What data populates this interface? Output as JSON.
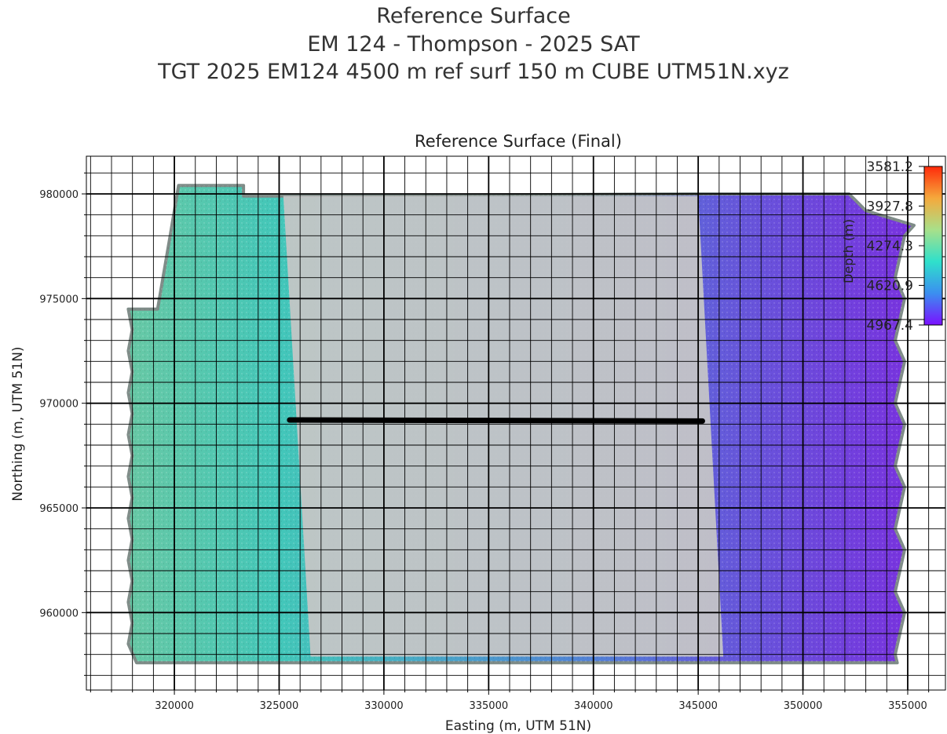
{
  "suptitle": {
    "line1": "Reference Surface",
    "line2": "EM 124 - Thompson - 2025 SAT",
    "line3": "TGT 2025 EM124 4500 m ref surf 150 m CUBE UTM51N.xyz"
  },
  "chart_data": {
    "type": "heatmap",
    "title": "Reference Surface (Final)",
    "xlabel": "Easting (m, UTM 51N)",
    "ylabel": "Northing (m, UTM 51N)",
    "xlim": [
      315800,
      356800
    ],
    "ylim": [
      956300,
      981800
    ],
    "x_ticks": [
      320000,
      325000,
      330000,
      335000,
      340000,
      345000,
      350000,
      355000
    ],
    "x_tick_labels": [
      "320000",
      "325000",
      "330000",
      "335000",
      "340000",
      "345000",
      "350000",
      "355000"
    ],
    "y_ticks": [
      960000,
      965000,
      970000,
      975000,
      980000
    ],
    "y_tick_labels": [
      "960000",
      "965000",
      "970000",
      "975000",
      "980000"
    ],
    "grid": true,
    "grid_minor_step": 1000,
    "surface_extent": {
      "x": [
        317800,
        355300
      ],
      "y": [
        957600,
        980400
      ]
    },
    "depth_gradient_by_easting": [
      {
        "x": 317800,
        "depth": 4300
      },
      {
        "x": 325000,
        "depth": 4420
      },
      {
        "x": 333000,
        "depth": 4580
      },
      {
        "x": 340000,
        "depth": 4720
      },
      {
        "x": 346000,
        "depth": 4830
      },
      {
        "x": 355300,
        "depth": 4950
      }
    ],
    "masked_region": {
      "label": "",
      "x_top": [
        325200,
        345000
      ],
      "x_bottom": [
        326500,
        346200
      ],
      "y": [
        957900,
        979900
      ]
    },
    "track_line": {
      "x": [
        325500,
        345200
      ],
      "y": [
        969200,
        969150
      ]
    },
    "colorbar": {
      "label": "Depth (m)",
      "cmap": "rainbow",
      "ticks": [
        3581.2,
        3927.8,
        4274.3,
        4620.9,
        4967.4
      ],
      "tick_labels": [
        "3581.2",
        "3927.8",
        "4274.3",
        "4620.9",
        "4967.4"
      ],
      "vmin": 3581.2,
      "vmax": 4967.4,
      "colors": [
        "#ff2a0a",
        "#f5a93c",
        "#a8e08a",
        "#2fe0cb",
        "#3b8ff0",
        "#7a10ff"
      ]
    }
  }
}
